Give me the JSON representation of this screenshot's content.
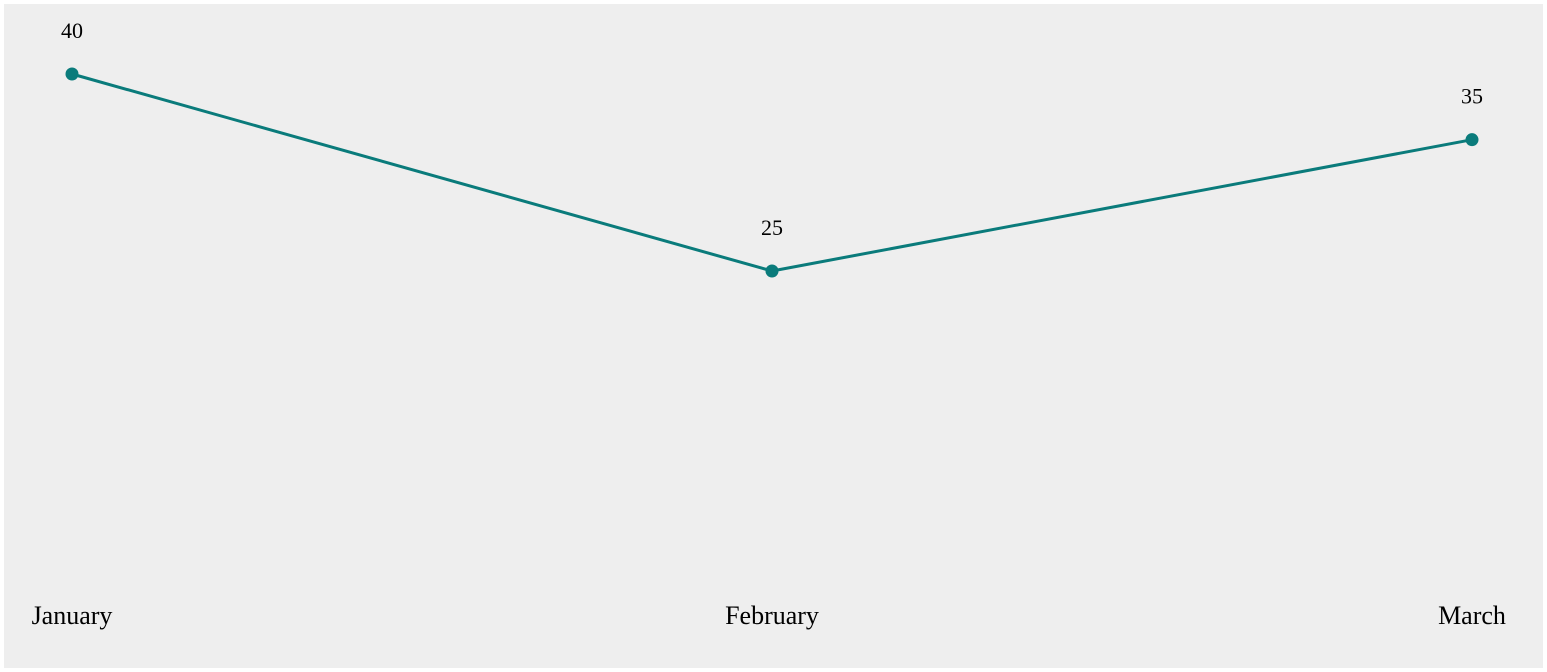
{
  "colors": {
    "background": "#eeeeee",
    "series": "#0a7b7b",
    "text": "#000000"
  },
  "chart_data": {
    "type": "line",
    "categories": [
      "January",
      "February",
      "March"
    ],
    "series": [
      {
        "values": [
          40,
          25,
          35
        ]
      }
    ],
    "data_labels": [
      "40",
      "25",
      "35"
    ],
    "title": "",
    "xlabel": "",
    "ylabel": "",
    "grid": false,
    "legend": "none"
  }
}
